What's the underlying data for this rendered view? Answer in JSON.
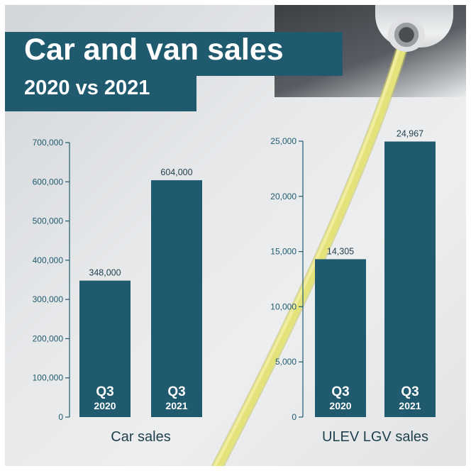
{
  "header": {
    "title": "Car and van sales",
    "subtitle": "2020 vs 2021"
  },
  "colors": {
    "bar": "#1f5a6e",
    "title_bg": "#1f5a6e",
    "axis": "#1f5a6e",
    "cable": "#e4e27a"
  },
  "chart_data": [
    {
      "type": "bar",
      "title": "",
      "xlabel": "Car sales",
      "ylabel": "",
      "ylim": [
        0,
        700000
      ],
      "ytick_values": [
        0,
        100000,
        200000,
        300000,
        400000,
        500000,
        600000,
        700000
      ],
      "ytick_labels": [
        "0",
        "100,000",
        "200,000",
        "300,000",
        "400,000",
        "500,000",
        "600,000",
        "700,000"
      ],
      "categories": [
        {
          "q": "Q3",
          "year": "2020"
        },
        {
          "q": "Q3",
          "year": "2021"
        }
      ],
      "values": [
        348000,
        604000
      ],
      "value_labels": [
        "348,000",
        "604,000"
      ],
      "grid": false
    },
    {
      "type": "bar",
      "title": "",
      "xlabel": "ULEV LGV sales",
      "ylabel": "",
      "ylim": [
        0,
        25000
      ],
      "ytick_values": [
        0,
        5000,
        10000,
        15000,
        20000,
        25000
      ],
      "ytick_labels": [
        "0",
        "5,000",
        "10,000",
        "15,000",
        "20,000",
        "25,000"
      ],
      "categories": [
        {
          "q": "Q3",
          "year": "2020"
        },
        {
          "q": "Q3",
          "year": "2021"
        }
      ],
      "values": [
        14305,
        24967
      ],
      "value_labels": [
        "14,305",
        "24,967"
      ],
      "grid": false
    }
  ]
}
